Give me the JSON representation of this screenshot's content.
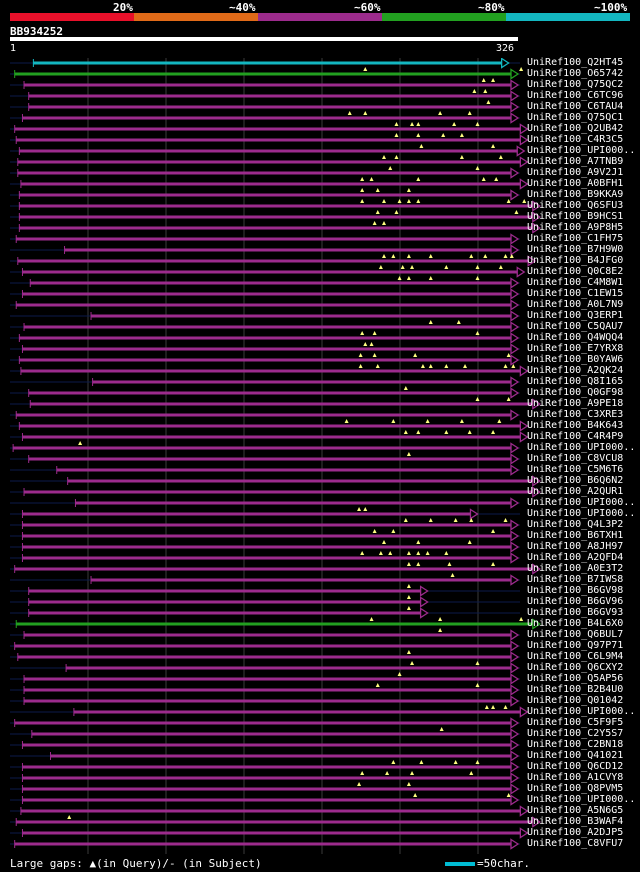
{
  "legend": {
    "labels": [
      "20%",
      "~40%",
      "~60%",
      "~80%",
      "~100%"
    ],
    "colors": [
      "#e8102a",
      "#e06a18",
      "#9c2b8c",
      "#22a020",
      "#13b6c0"
    ]
  },
  "query": {
    "name": "BB934252",
    "start": "1",
    "end": "326",
    "length": 326
  },
  "footer": {
    "note": "Large gaps: ▲(in Query)/- (in Subject)",
    "scale_label": "=50char."
  },
  "hits": [
    {
      "name": "UniRef100_Q2HT45",
      "start": 15,
      "end": 320,
      "cls": 4,
      "gaps": []
    },
    {
      "name": "UniRef100_O65742",
      "start": 3,
      "end": 326,
      "cls": 3,
      "gaps": [
        228,
        328
      ]
    },
    {
      "name": "UniRef100_Q75QC2",
      "start": 9,
      "end": 326,
      "cls": 2,
      "gaps": [
        304,
        310
      ]
    },
    {
      "name": "UniRef100_C6TC96",
      "start": 12,
      "end": 326,
      "cls": 2,
      "gaps": [
        298,
        305
      ]
    },
    {
      "name": "UniRef100_C6TAU4",
      "start": 12,
      "end": 326,
      "cls": 2,
      "gaps": [
        307
      ]
    },
    {
      "name": "UniRef100_Q75QC1",
      "start": 8,
      "end": 326,
      "cls": 2,
      "gaps": [
        218,
        228,
        276,
        295
      ]
    },
    {
      "name": "UniRef100_Q2UB42",
      "start": 3,
      "end": 332,
      "cls": 2,
      "gaps": [
        248,
        258,
        262,
        285,
        300
      ]
    },
    {
      "name": "UniRef100_C4R3C5",
      "start": 4,
      "end": 332,
      "cls": 2,
      "gaps": [
        248,
        262,
        278,
        290
      ]
    },
    {
      "name": "UniRef100_UPI000..",
      "start": 6,
      "end": 330,
      "cls": 2,
      "gaps": [
        264,
        310
      ]
    },
    {
      "name": "UniRef100_A7TNB9",
      "start": 5,
      "end": 332,
      "cls": 2,
      "gaps": [
        240,
        248,
        290,
        315
      ]
    },
    {
      "name": "UniRef100_A9V2J1",
      "start": 5,
      "end": 326,
      "cls": 2,
      "gaps": [
        244,
        300
      ]
    },
    {
      "name": "UniRef100_A0BFH1",
      "start": 7,
      "end": 332,
      "cls": 2,
      "gaps": [
        226,
        232,
        262,
        304,
        312
      ]
    },
    {
      "name": "UniRef100_B9KKA9",
      "start": 6,
      "end": 326,
      "cls": 2,
      "gaps": [
        226,
        236,
        256
      ]
    },
    {
      "name": "UniRef100_Q6SFU3",
      "start": 6,
      "end": 340,
      "cls": 2,
      "gaps": [
        226,
        240,
        250,
        256,
        262,
        320,
        330
      ]
    },
    {
      "name": "UniRef100_B9HCS1",
      "start": 6,
      "end": 340,
      "cls": 2,
      "gaps": [
        236,
        248,
        325
      ]
    },
    {
      "name": "UniRef100_A9P8H5",
      "start": 6,
      "end": 340,
      "cls": 2,
      "gaps": [
        234,
        240
      ]
    },
    {
      "name": "UniRef100_C1FH75",
      "start": 4,
      "end": 326,
      "cls": 2,
      "gaps": []
    },
    {
      "name": "UniRef100_B7H9W0",
      "start": 35,
      "end": 326,
      "cls": 2,
      "gaps": []
    },
    {
      "name": "UniRef100_B4JFG0",
      "start": 5,
      "end": 337,
      "cls": 2,
      "gaps": [
        240,
        246,
        256,
        270,
        296,
        305,
        318,
        322
      ]
    },
    {
      "name": "UniRef100_Q0C8E2",
      "start": 8,
      "end": 330,
      "cls": 2,
      "gaps": [
        238,
        252,
        258,
        280,
        300,
        315
      ]
    },
    {
      "name": "UniRef100_C4M8W1",
      "start": 13,
      "end": 326,
      "cls": 2,
      "gaps": [
        250,
        256,
        270,
        300
      ]
    },
    {
      "name": "UniRef100_C1EW15",
      "start": 8,
      "end": 326,
      "cls": 2,
      "gaps": []
    },
    {
      "name": "UniRef100_A0L7N9",
      "start": 4,
      "end": 326,
      "cls": 2,
      "gaps": []
    },
    {
      "name": "UniRef100_Q3ERP1",
      "start": 52,
      "end": 326,
      "cls": 2,
      "gaps": []
    },
    {
      "name": "UniRef100_C5QAU7",
      "start": 9,
      "end": 326,
      "cls": 2,
      "gaps": [
        270,
        288
      ]
    },
    {
      "name": "UniRef100_Q4WQQ4",
      "start": 6,
      "end": 326,
      "cls": 2,
      "gaps": [
        226,
        234,
        300
      ]
    },
    {
      "name": "UniRef100_E7YRX8",
      "start": 8,
      "end": 326,
      "cls": 2,
      "gaps": [
        228,
        232
      ]
    },
    {
      "name": "UniRef100_B0YAW6",
      "start": 6,
      "end": 326,
      "cls": 2,
      "gaps": [
        225,
        234,
        260,
        320
      ]
    },
    {
      "name": "UniRef100_A2QK24",
      "start": 7,
      "end": 332,
      "cls": 2,
      "gaps": [
        225,
        236,
        265,
        270,
        280,
        292,
        318,
        323
      ]
    },
    {
      "name": "UniRef100_Q8I165",
      "start": 53,
      "end": 326,
      "cls": 2,
      "gaps": []
    },
    {
      "name": "UniRef100_Q0GF98",
      "start": 12,
      "end": 326,
      "cls": 2,
      "gaps": [
        254
      ]
    },
    {
      "name": "UniRef100_A9PE18",
      "start": 13,
      "end": 340,
      "cls": 2,
      "gaps": [
        300,
        320
      ]
    },
    {
      "name": "UniRef100_C3XRE3",
      "start": 4,
      "end": 326,
      "cls": 2,
      "gaps": []
    },
    {
      "name": "UniRef100_B4K643",
      "start": 6,
      "end": 332,
      "cls": 2,
      "gaps": [
        216,
        246,
        268,
        290,
        314
      ]
    },
    {
      "name": "UniRef100_C4R4P9",
      "start": 8,
      "end": 332,
      "cls": 2,
      "gaps": [
        254,
        262,
        280,
        295,
        310
      ]
    },
    {
      "name": "UniRef100_UPI000..",
      "start": 2,
      "end": 326,
      "cls": 2,
      "gaps": [
        45
      ]
    },
    {
      "name": "UniRef100_C8VCU8",
      "start": 12,
      "end": 326,
      "cls": 2,
      "gaps": [
        256
      ]
    },
    {
      "name": "UniRef100_C5M6T6",
      "start": 30,
      "end": 326,
      "cls": 2,
      "gaps": []
    },
    {
      "name": "UniRef100_B6Q6N2",
      "start": 37,
      "end": 340,
      "cls": 2,
      "gaps": []
    },
    {
      "name": "UniRef100_A2QUR1",
      "start": 9,
      "end": 340,
      "cls": 2,
      "gaps": []
    },
    {
      "name": "UniRef100_UPI000..",
      "start": 42,
      "end": 326,
      "cls": 2,
      "gaps": []
    },
    {
      "name": "UniRef100_UPI000..",
      "start": 8,
      "end": 300,
      "cls": 2,
      "gaps": [
        224,
        228
      ]
    },
    {
      "name": "UniRef100_Q4L3P2",
      "start": 8,
      "end": 326,
      "cls": 2,
      "gaps": [
        254,
        270,
        286,
        296,
        318
      ]
    },
    {
      "name": "UniRef100_B6TXH1",
      "start": 8,
      "end": 326,
      "cls": 2,
      "gaps": [
        234,
        246,
        310
      ]
    },
    {
      "name": "UniRef100_A8JH97",
      "start": 8,
      "end": 326,
      "cls": 2,
      "gaps": [
        240,
        262,
        295
      ]
    },
    {
      "name": "UniRef100_A2QFD4",
      "start": 8,
      "end": 326,
      "cls": 2,
      "gaps": [
        226,
        238,
        244,
        256,
        262,
        268,
        280
      ]
    },
    {
      "name": "UniRef100_A0E3T2",
      "start": 3,
      "end": 340,
      "cls": 2,
      "gaps": [
        256,
        262,
        282,
        310
      ]
    },
    {
      "name": "UniRef100_B7IWS8",
      "start": 52,
      "end": 326,
      "cls": 2,
      "gaps": [
        284
      ]
    },
    {
      "name": "UniRef100_B6GV98",
      "start": 12,
      "end": 268,
      "cls": 2,
      "gaps": [
        256
      ]
    },
    {
      "name": "UniRef100_B6GV96",
      "start": 12,
      "end": 268,
      "cls": 2,
      "gaps": [
        256
      ]
    },
    {
      "name": "UniRef100_B6GV93",
      "start": 12,
      "end": 268,
      "cls": 2,
      "gaps": [
        256
      ]
    },
    {
      "name": "UniRef100_B4L6X0",
      "start": 4,
      "end": 340,
      "cls": 3,
      "gaps": [
        232,
        276,
        328
      ]
    },
    {
      "name": "UniRef100_Q6BUL7",
      "start": 9,
      "end": 326,
      "cls": 2,
      "gaps": [
        276
      ]
    },
    {
      "name": "UniRef100_Q97P71",
      "start": 3,
      "end": 326,
      "cls": 2,
      "gaps": []
    },
    {
      "name": "UniRef100_C6L9M4",
      "start": 5,
      "end": 326,
      "cls": 2,
      "gaps": [
        256
      ]
    },
    {
      "name": "UniRef100_Q6CXY2",
      "start": 36,
      "end": 326,
      "cls": 2,
      "gaps": [
        258,
        300
      ]
    },
    {
      "name": "UniRef100_Q5AP56",
      "start": 9,
      "end": 326,
      "cls": 2,
      "gaps": [
        250
      ]
    },
    {
      "name": "UniRef100_B2B4U0",
      "start": 9,
      "end": 326,
      "cls": 2,
      "gaps": [
        236,
        300
      ]
    },
    {
      "name": "UniRef100_Q01042",
      "start": 9,
      "end": 326,
      "cls": 2,
      "gaps": []
    },
    {
      "name": "UniRef100_UPI000..",
      "start": 41,
      "end": 332,
      "cls": 2,
      "gaps": [
        306,
        310,
        318
      ]
    },
    {
      "name": "UniRef100_C5F9F5",
      "start": 3,
      "end": 326,
      "cls": 2,
      "gaps": []
    },
    {
      "name": "UniRef100_C2Y5S7",
      "start": 14,
      "end": 326,
      "cls": 2,
      "gaps": [
        277
      ]
    },
    {
      "name": "UniRef100_C2BN18",
      "start": 8,
      "end": 326,
      "cls": 2,
      "gaps": []
    },
    {
      "name": "UniRef100_Q41021",
      "start": 26,
      "end": 326,
      "cls": 2,
      "gaps": []
    },
    {
      "name": "UniRef100_Q6CD12",
      "start": 8,
      "end": 326,
      "cls": 2,
      "gaps": [
        246,
        264,
        286,
        300
      ]
    },
    {
      "name": "UniRef100_A1CVY8",
      "start": 8,
      "end": 326,
      "cls": 2,
      "gaps": [
        226,
        242,
        258,
        296
      ]
    },
    {
      "name": "UniRef100_Q8PVM5",
      "start": 8,
      "end": 326,
      "cls": 2,
      "gaps": [
        224,
        256
      ]
    },
    {
      "name": "UniRef100_UPI000..",
      "start": 8,
      "end": 326,
      "cls": 2,
      "gaps": [
        260,
        320
      ]
    },
    {
      "name": "UniRef100_A5N6G5",
      "start": 7,
      "end": 332,
      "cls": 2,
      "gaps": []
    },
    {
      "name": "UniRef100_B3WAF4",
      "start": 4,
      "end": 340,
      "cls": 2,
      "gaps": [
        38
      ]
    },
    {
      "name": "UniRef100_A2DJP5",
      "start": 8,
      "end": 332,
      "cls": 2,
      "gaps": []
    },
    {
      "name": "UniRef100_C8VFU7",
      "start": 3,
      "end": 326,
      "cls": 2,
      "gaps": []
    }
  ]
}
